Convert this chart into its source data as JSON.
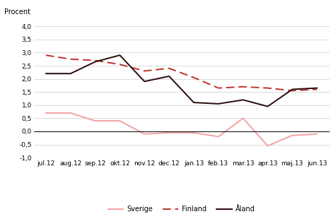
{
  "categories": [
    "jul.12",
    "aug.12",
    "sep.12",
    "okt.12",
    "nov.12",
    "dec.12",
    "jan.13",
    "feb.13",
    "mar.13",
    "apr.13",
    "maj.13",
    "jun.13"
  ],
  "sverige": [
    0.7,
    0.7,
    0.4,
    0.4,
    -0.1,
    -0.05,
    -0.05,
    -0.2,
    0.5,
    -0.55,
    -0.15,
    -0.1
  ],
  "finland": [
    2.9,
    2.75,
    2.7,
    2.55,
    2.3,
    2.4,
    2.05,
    1.65,
    1.7,
    1.65,
    1.55,
    1.6
  ],
  "aland": [
    2.2,
    2.2,
    2.65,
    2.9,
    1.9,
    2.1,
    1.1,
    1.05,
    1.2,
    0.95,
    1.6,
    1.65
  ],
  "sverige_color": "#f4a0a0",
  "finland_color": "#c0302a",
  "aland_color": "#2a0a0a",
  "ylabel": "Procent",
  "ylim": [
    -1.0,
    4.0
  ],
  "yticks": [
    -1.0,
    -0.5,
    0.0,
    0.5,
    1.0,
    1.5,
    2.0,
    2.5,
    3.0,
    3.5,
    4.0
  ],
  "legend_labels": [
    "Sverige",
    "Finland",
    "Åland"
  ],
  "bg_color": "#ffffff",
  "grid_color": "#cccccc"
}
